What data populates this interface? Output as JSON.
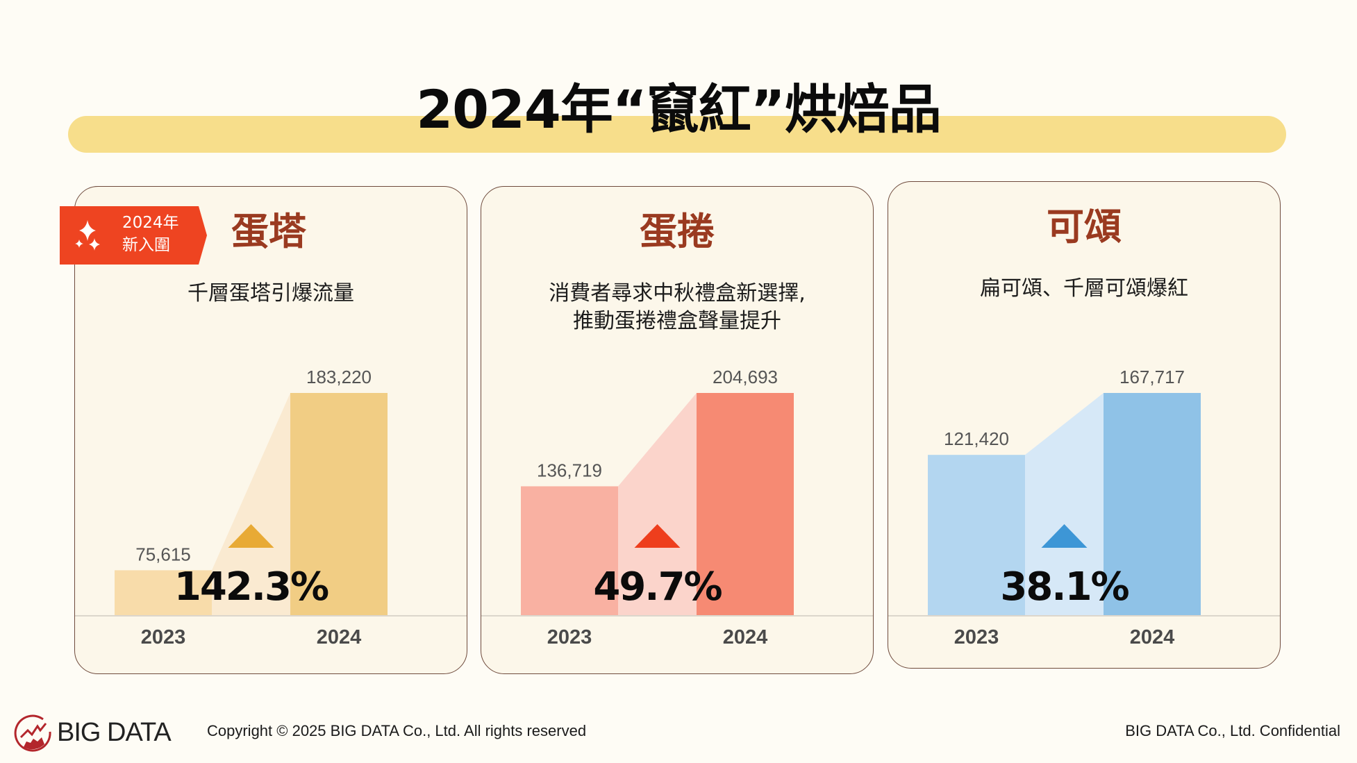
{
  "page": {
    "title": "2024年“竄紅”烘焙品"
  },
  "badge": {
    "line1": "2024年",
    "line2": "新入圍",
    "icon": "sparkle-icon"
  },
  "cards": [
    {
      "name": "蛋塔",
      "description": "千層蛋塔引爆流量",
      "growth_label": "142.3%",
      "colors": {
        "bar2023": "#f8dcaa",
        "bar2024": "#f1cd84",
        "band": "#faead1",
        "arrow": "#e8aa35"
      }
    },
    {
      "name": "蛋捲",
      "description": "消費者尋求中秋禮盒新選擇,\n推動蛋捲禮盒聲量提升",
      "growth_label": "49.7%",
      "colors": {
        "bar2023": "#f9b1a2",
        "bar2024": "#f68a73",
        "band": "#fbd4cb",
        "arrow": "#ee3e1d"
      }
    },
    {
      "name": "可頌",
      "description": "扁可頌、千層可頌爆紅",
      "growth_label": "38.1%",
      "colors": {
        "bar2023": "#b3d6f0",
        "bar2024": "#8fc2e7",
        "band": "#d6e8f7",
        "arrow": "#3d96d6"
      }
    }
  ],
  "chart_data": [
    {
      "type": "bar",
      "title": "蛋塔",
      "categories": [
        "2023",
        "2024"
      ],
      "values": [
        75615,
        183220
      ],
      "value_labels": [
        "75,615",
        "183,220"
      ],
      "growth": "142.3%",
      "ylim": [
        48400,
        183220
      ],
      "grid": false
    },
    {
      "type": "bar",
      "title": "蛋捲",
      "categories": [
        "2023",
        "2024"
      ],
      "values": [
        136719,
        204693
      ],
      "value_labels": [
        "136,719",
        "204,693"
      ],
      "growth": "49.7%",
      "ylim": [
        42900,
        204693
      ],
      "grid": false
    },
    {
      "type": "bar",
      "title": "可頌",
      "categories": [
        "2023",
        "2024"
      ],
      "values": [
        121420,
        167717
      ],
      "value_labels": [
        "121,420",
        "167,717"
      ],
      "growth": "38.1%",
      "ylim": [
        1600,
        167717
      ],
      "grid": false
    }
  ],
  "footer": {
    "logo_text": "BIG DATA",
    "copyright": "Copyright © 2025 BIG DATA Co., Ltd. All rights reserved",
    "confidential": "BIG DATA Co., Ltd. Confidential",
    "logo_icon": "big-data-logo-icon"
  }
}
